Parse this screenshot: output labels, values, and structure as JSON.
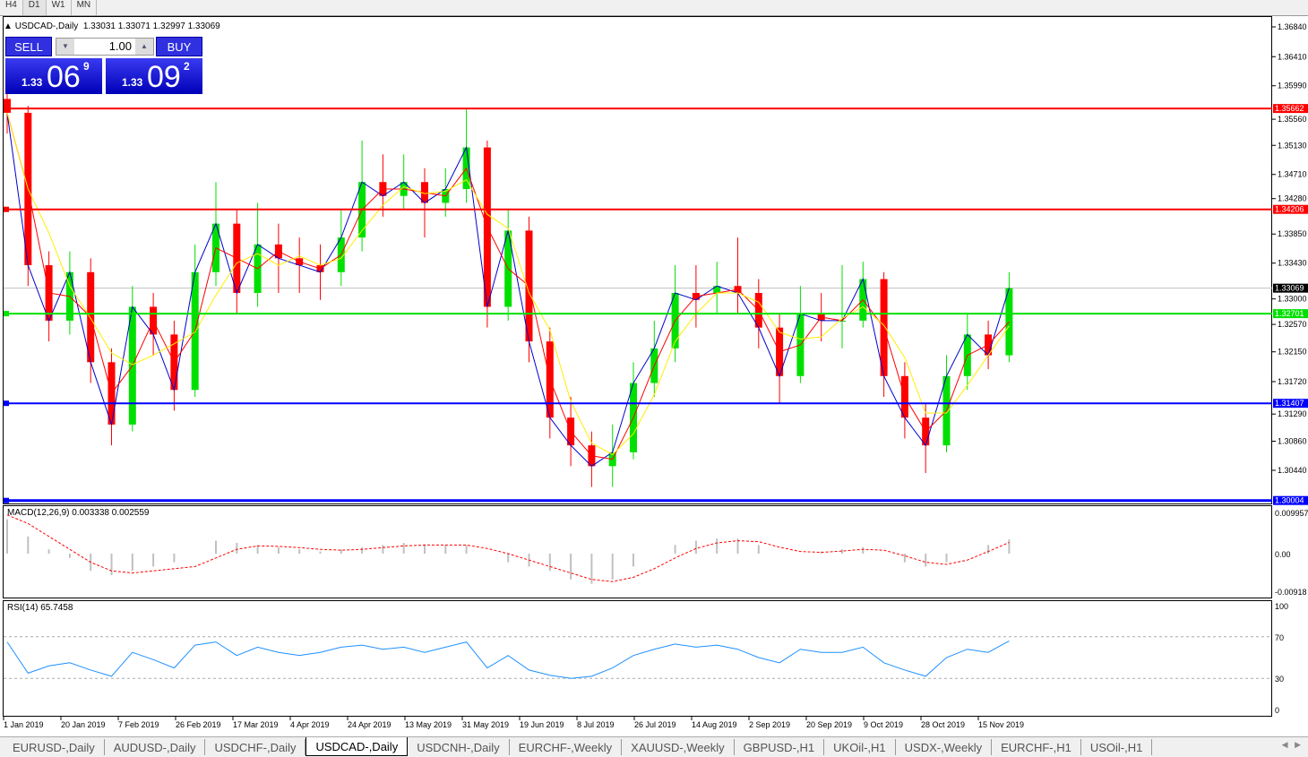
{
  "timeframes": [
    "H4",
    "D1",
    "W1",
    "MN"
  ],
  "active_timeframe": "D1",
  "header": {
    "symbol": "USDCAD-,Daily",
    "ohlc": "1.33031 1.33071 1.32997 1.33069"
  },
  "trade_panel": {
    "sell_label": "SELL",
    "buy_label": "BUY",
    "lot": "1.00",
    "sell_big": "1.33",
    "sell_main": "06",
    "sell_pip": "9",
    "buy_big": "1.33",
    "buy_main": "09",
    "buy_pip": "2"
  },
  "colors": {
    "bull": "#00e000",
    "bear": "#ff0000",
    "ma_fast": "#0000cc",
    "ma_mid": "#ff0000",
    "ma_slow": "#ffee00",
    "rsi": "#1e90ff",
    "macd_hist": "#c0c0c0",
    "macd_signal": "#ff0000"
  },
  "chart_data": {
    "type": "candlestick",
    "symbol": "USDCAD-",
    "ylim": [
      1.30004,
      1.3684
    ],
    "price_ticks": [
      "1.36840",
      "1.36410",
      "1.35990",
      "1.35560",
      "1.35130",
      "1.34710",
      "1.34280",
      "1.33850",
      "1.33430",
      "1.33000",
      "1.32570",
      "1.32150",
      "1.31720",
      "1.31290",
      "1.30860",
      "1.30440"
    ],
    "x_ticks": [
      "1 Jan 2019",
      "20 Jan 2019",
      "7 Feb 2019",
      "26 Feb 2019",
      "17 Mar 2019",
      "4 Apr 2019",
      "24 Apr 2019",
      "13 May 2019",
      "31 May 2019",
      "19 Jun 2019",
      "8 Jul 2019",
      "26 Jul 2019",
      "14 Aug 2019",
      "2 Sep 2019",
      "20 Sep 2019",
      "9 Oct 2019",
      "28 Oct 2019",
      "15 Nov 2019"
    ],
    "current_price": {
      "value": 1.33069,
      "label": "1.33069"
    },
    "hlines": [
      {
        "value": 1.35662,
        "label": "1.35662",
        "color": "#ff0000"
      },
      {
        "value": 1.34206,
        "label": "1.34206",
        "color": "#ff0000"
      },
      {
        "value": 1.32701,
        "label": "1.32701",
        "color": "#00e000"
      },
      {
        "value": 1.31407,
        "label": "1.31407",
        "color": "#0000ff"
      },
      {
        "value": 1.30004,
        "label": "1.30004",
        "color": "#0000ff"
      }
    ],
    "candles": [
      [
        1.358,
        1.3595,
        1.353,
        1.356
      ],
      [
        1.356,
        1.357,
        1.331,
        1.334
      ],
      [
        1.334,
        1.336,
        1.323,
        1.326
      ],
      [
        1.326,
        1.336,
        1.324,
        1.333
      ],
      [
        1.333,
        1.335,
        1.317,
        1.32
      ],
      [
        1.32,
        1.322,
        1.308,
        1.311
      ],
      [
        1.311,
        1.331,
        1.31,
        1.328
      ],
      [
        1.328,
        1.33,
        1.321,
        1.324
      ],
      [
        1.324,
        1.326,
        1.313,
        1.316
      ],
      [
        1.316,
        1.337,
        1.315,
        1.333
      ],
      [
        1.333,
        1.346,
        1.331,
        1.34
      ],
      [
        1.34,
        1.342,
        1.327,
        1.33
      ],
      [
        1.33,
        1.343,
        1.328,
        1.337
      ],
      [
        1.337,
        1.34,
        1.33,
        1.335
      ],
      [
        1.335,
        1.338,
        1.33,
        1.334
      ],
      [
        1.334,
        1.337,
        1.329,
        1.333
      ],
      [
        1.333,
        1.342,
        1.331,
        1.338
      ],
      [
        1.338,
        1.352,
        1.336,
        1.346
      ],
      [
        1.346,
        1.35,
        1.341,
        1.344
      ],
      [
        1.344,
        1.35,
        1.342,
        1.346
      ],
      [
        1.346,
        1.348,
        1.338,
        1.343
      ],
      [
        1.343,
        1.348,
        1.341,
        1.345
      ],
      [
        1.345,
        1.3565,
        1.343,
        1.351
      ],
      [
        1.351,
        1.352,
        1.325,
        1.328
      ],
      [
        1.328,
        1.342,
        1.326,
        1.339
      ],
      [
        1.339,
        1.341,
        1.32,
        1.323
      ],
      [
        1.323,
        1.325,
        1.309,
        1.312
      ],
      [
        1.312,
        1.315,
        1.305,
        1.308
      ],
      [
        1.308,
        1.31,
        1.302,
        1.305
      ],
      [
        1.305,
        1.311,
        1.302,
        1.307
      ],
      [
        1.307,
        1.32,
        1.306,
        1.317
      ],
      [
        1.317,
        1.326,
        1.315,
        1.322
      ],
      [
        1.322,
        1.334,
        1.32,
        1.33
      ],
      [
        1.33,
        1.334,
        1.325,
        1.329
      ],
      [
        1.33,
        1.3345,
        1.327,
        1.331
      ],
      [
        1.331,
        1.338,
        1.327,
        1.33
      ],
      [
        1.33,
        1.332,
        1.322,
        1.325
      ],
      [
        1.325,
        1.327,
        1.314,
        1.318
      ],
      [
        1.318,
        1.331,
        1.317,
        1.327
      ],
      [
        1.327,
        1.33,
        1.323,
        1.326
      ],
      [
        1.326,
        1.334,
        1.322,
        1.326
      ],
      [
        1.326,
        1.3345,
        1.325,
        1.332
      ],
      [
        1.332,
        1.333,
        1.315,
        1.318
      ],
      [
        1.318,
        1.32,
        1.309,
        1.312
      ],
      [
        1.312,
        1.314,
        1.304,
        1.308
      ],
      [
        1.308,
        1.321,
        1.307,
        1.318
      ],
      [
        1.318,
        1.327,
        1.316,
        1.324
      ],
      [
        1.324,
        1.326,
        1.319,
        1.321
      ],
      [
        1.321,
        1.333,
        1.32,
        1.3307
      ]
    ],
    "macd": {
      "label": "MACD(12,26,9) 0.003338 0.002559",
      "ylim": [
        -0.00918,
        0.009957
      ],
      "ticks": [
        "0.009957",
        "0.00",
        "-0.00918"
      ],
      "main": [
        0.008,
        0.004,
        0.001,
        -0.001,
        -0.004,
        -0.005,
        -0.004,
        -0.003,
        -0.002,
        0,
        0.003,
        0.0025,
        0.002,
        0.0015,
        0.001,
        0.0005,
        0.001,
        0.0015,
        0.002,
        0.0025,
        0.0022,
        0.002,
        0.002,
        0,
        -0.002,
        -0.003,
        -0.004,
        -0.006,
        -0.007,
        -0.006,
        -0.003,
        0,
        0.002,
        0.003,
        0.0035,
        0.0035,
        0.002,
        0,
        0,
        0.0005,
        0.001,
        0.0015,
        0,
        -0.002,
        -0.003,
        -0.002,
        0,
        0.002,
        0.0033
      ],
      "signal": [
        0.009,
        0.007,
        0.004,
        0.001,
        -0.002,
        -0.004,
        -0.0045,
        -0.004,
        -0.0035,
        -0.003,
        -0.001,
        0.001,
        0.0018,
        0.0017,
        0.0014,
        0.001,
        0.0008,
        0.001,
        0.0014,
        0.0018,
        0.002,
        0.002,
        0.002,
        0.0012,
        0,
        -0.0015,
        -0.003,
        -0.0045,
        -0.006,
        -0.0065,
        -0.0055,
        -0.0035,
        -0.001,
        0.0012,
        0.0025,
        0.003,
        0.0028,
        0.0015,
        0.0005,
        0.0003,
        0.0006,
        0.001,
        0.0008,
        -0.0005,
        -0.002,
        -0.0025,
        -0.0015,
        0.0005,
        0.0026
      ]
    },
    "rsi": {
      "label": "RSI(14) 65.7458",
      "ylim": [
        0,
        100
      ],
      "ticks": [
        "100",
        "70",
        "30",
        "0"
      ],
      "levels": [
        70,
        30
      ],
      "values": [
        65,
        35,
        42,
        45,
        38,
        32,
        55,
        48,
        40,
        62,
        65,
        52,
        60,
        55,
        52,
        55,
        60,
        62,
        58,
        60,
        55,
        60,
        65,
        40,
        52,
        38,
        33,
        30,
        32,
        40,
        52,
        58,
        63,
        60,
        62,
        58,
        50,
        45,
        58,
        55,
        55,
        60,
        45,
        38,
        32,
        50,
        58,
        55,
        66
      ]
    }
  },
  "symbol_tabs": [
    "EURUSD-,Daily",
    "AUDUSD-,Daily",
    "USDCHF-,Daily",
    "USDCAD-,Daily",
    "USDCNH-,Daily",
    "EURCHF-,Weekly",
    "XAUUSD-,Weekly",
    "GBPUSD-,H1",
    "UKOil-,H1",
    "USDX-,Weekly",
    "EURCHF-,H1",
    "USOil-,H1"
  ],
  "active_tab": "USDCAD-,Daily"
}
